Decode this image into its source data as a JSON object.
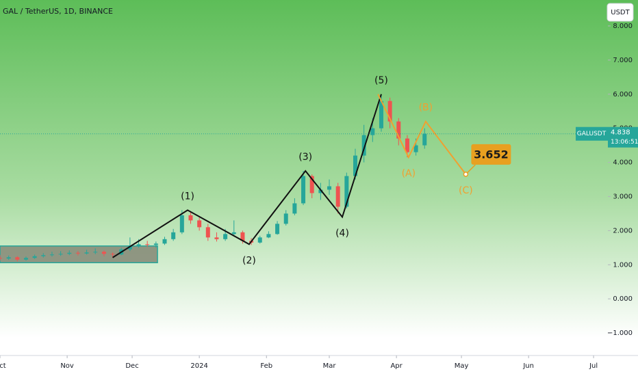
{
  "chart_data": {
    "type": "candlestick",
    "title": "GAL / TetherUS, 1D, BINANCE",
    "currency": "USDT",
    "ylim": [
      -1.5,
      8.5
    ],
    "yticks": [
      {
        "value": 8,
        "label": "8.000"
      },
      {
        "value": 7,
        "label": "7.000"
      },
      {
        "value": 6,
        "label": "6.000"
      },
      {
        "value": 5,
        "label": "5.000"
      },
      {
        "value": 4,
        "label": "4.000"
      },
      {
        "value": 3,
        "label": "3.000"
      },
      {
        "value": 2,
        "label": "2.000"
      },
      {
        "value": 1,
        "label": "1.000"
      },
      {
        "value": 0,
        "label": "0.000"
      },
      {
        "value": -1,
        "label": "−1.000"
      }
    ],
    "xlim": [
      0,
      280.6
    ],
    "xticks": [
      {
        "value": 0,
        "label": "Oct"
      },
      {
        "value": 31,
        "label": "Nov"
      },
      {
        "value": 61,
        "label": "Dec"
      },
      {
        "value": 92,
        "label": "2024"
      },
      {
        "value": 123,
        "label": "Feb"
      },
      {
        "value": 152,
        "label": "Mar"
      },
      {
        "value": 183,
        "label": "Apr"
      },
      {
        "value": 213,
        "label": "May"
      },
      {
        "value": 244,
        "label": "Jun"
      },
      {
        "value": 274,
        "label": "Jul"
      }
    ],
    "up_color": "#26a69a",
    "down_color": "#ef5350",
    "x": [
      0,
      4,
      8,
      12,
      16,
      20,
      24,
      28,
      32,
      36,
      40,
      44,
      48,
      52,
      56,
      60,
      64,
      68,
      72,
      76,
      80,
      84,
      88,
      92,
      96,
      100,
      104,
      108,
      112,
      116,
      120,
      124,
      128,
      132,
      136,
      140,
      144,
      148,
      152,
      156,
      160,
      164,
      168,
      172,
      176,
      180,
      184,
      188,
      192,
      196
    ],
    "open": [
      1.2,
      1.18,
      1.22,
      1.15,
      1.2,
      1.25,
      1.28,
      1.3,
      1.32,
      1.35,
      1.33,
      1.36,
      1.38,
      1.32,
      1.3,
      1.45,
      1.55,
      1.6,
      1.58,
      1.62,
      1.75,
      1.95,
      2.45,
      2.3,
      2.1,
      1.8,
      1.75,
      1.9,
      1.95,
      1.7,
      1.65,
      1.8,
      1.9,
      2.2,
      2.5,
      2.8,
      3.6,
      3.1,
      3.2,
      3.3,
      2.7,
      3.6,
      4.2,
      4.8,
      5.0,
      5.8,
      5.2,
      4.7,
      4.3,
      4.5
    ],
    "high": [
      1.28,
      1.27,
      1.25,
      1.24,
      1.3,
      1.34,
      1.38,
      1.4,
      1.42,
      1.4,
      1.44,
      1.48,
      1.42,
      1.36,
      1.5,
      1.8,
      1.75,
      1.7,
      1.68,
      1.82,
      2.05,
      2.6,
      2.55,
      2.38,
      2.2,
      1.95,
      2.05,
      2.3,
      2.0,
      1.78,
      1.85,
      1.98,
      2.28,
      2.6,
      2.95,
      3.75,
      3.65,
      3.4,
      3.5,
      3.4,
      3.7,
      4.4,
      5.1,
      5.3,
      6.0,
      5.9,
      5.3,
      4.8,
      4.7,
      5.0
    ],
    "low": [
      1.12,
      1.14,
      1.1,
      1.12,
      1.17,
      1.21,
      1.24,
      1.26,
      1.28,
      1.27,
      1.3,
      1.31,
      1.25,
      1.22,
      1.28,
      1.4,
      1.5,
      1.52,
      1.5,
      1.58,
      1.7,
      1.9,
      2.2,
      2.0,
      1.7,
      1.68,
      1.7,
      1.85,
      1.62,
      1.58,
      1.62,
      1.78,
      1.88,
      2.15,
      2.45,
      2.75,
      2.95,
      2.9,
      3.05,
      2.5,
      2.65,
      3.5,
      4.0,
      4.6,
      4.9,
      5.0,
      4.5,
      4.15,
      4.2,
      4.4
    ],
    "close": [
      1.18,
      1.22,
      1.15,
      1.2,
      1.25,
      1.28,
      1.3,
      1.32,
      1.35,
      1.33,
      1.36,
      1.38,
      1.32,
      1.3,
      1.45,
      1.55,
      1.6,
      1.58,
      1.62,
      1.75,
      1.95,
      2.45,
      2.3,
      2.1,
      1.8,
      1.75,
      1.9,
      1.95,
      1.7,
      1.65,
      1.8,
      1.9,
      2.2,
      2.5,
      2.8,
      3.6,
      3.1,
      3.2,
      3.3,
      2.7,
      3.6,
      4.2,
      4.8,
      5.0,
      5.8,
      5.2,
      4.7,
      4.3,
      4.5,
      4.84
    ],
    "zone": {
      "x": [
        0,
        72.7
      ],
      "y": [
        1.06,
        1.55
      ],
      "color": "#7a7a6a"
    },
    "waves": [
      {
        "color": "#111111",
        "x": [
          52,
          86.6,
          115,
          141,
          158,
          176
        ],
        "y": [
          1.21,
          2.6,
          1.6,
          3.75,
          2.4,
          6.0
        ],
        "labels": [
          null,
          "(1)",
          "(2)",
          "(3)",
          "(4)",
          "(5)"
        ]
      },
      {
        "color": "#f0a030",
        "x": [
          174.5,
          188.6,
          196.5,
          215
        ],
        "y": [
          6.0,
          4.15,
          5.2,
          3.652
        ],
        "labels": [
          null,
          "(A)",
          "(B)",
          "(C)"
        ]
      }
    ],
    "target": {
      "value": 3.652,
      "x": 215,
      "color": "#e8a020"
    },
    "last_price": {
      "symbol": "GALUSDT",
      "value": 4.838,
      "countdown": "13:06:51",
      "color": "#26a69a"
    }
  }
}
